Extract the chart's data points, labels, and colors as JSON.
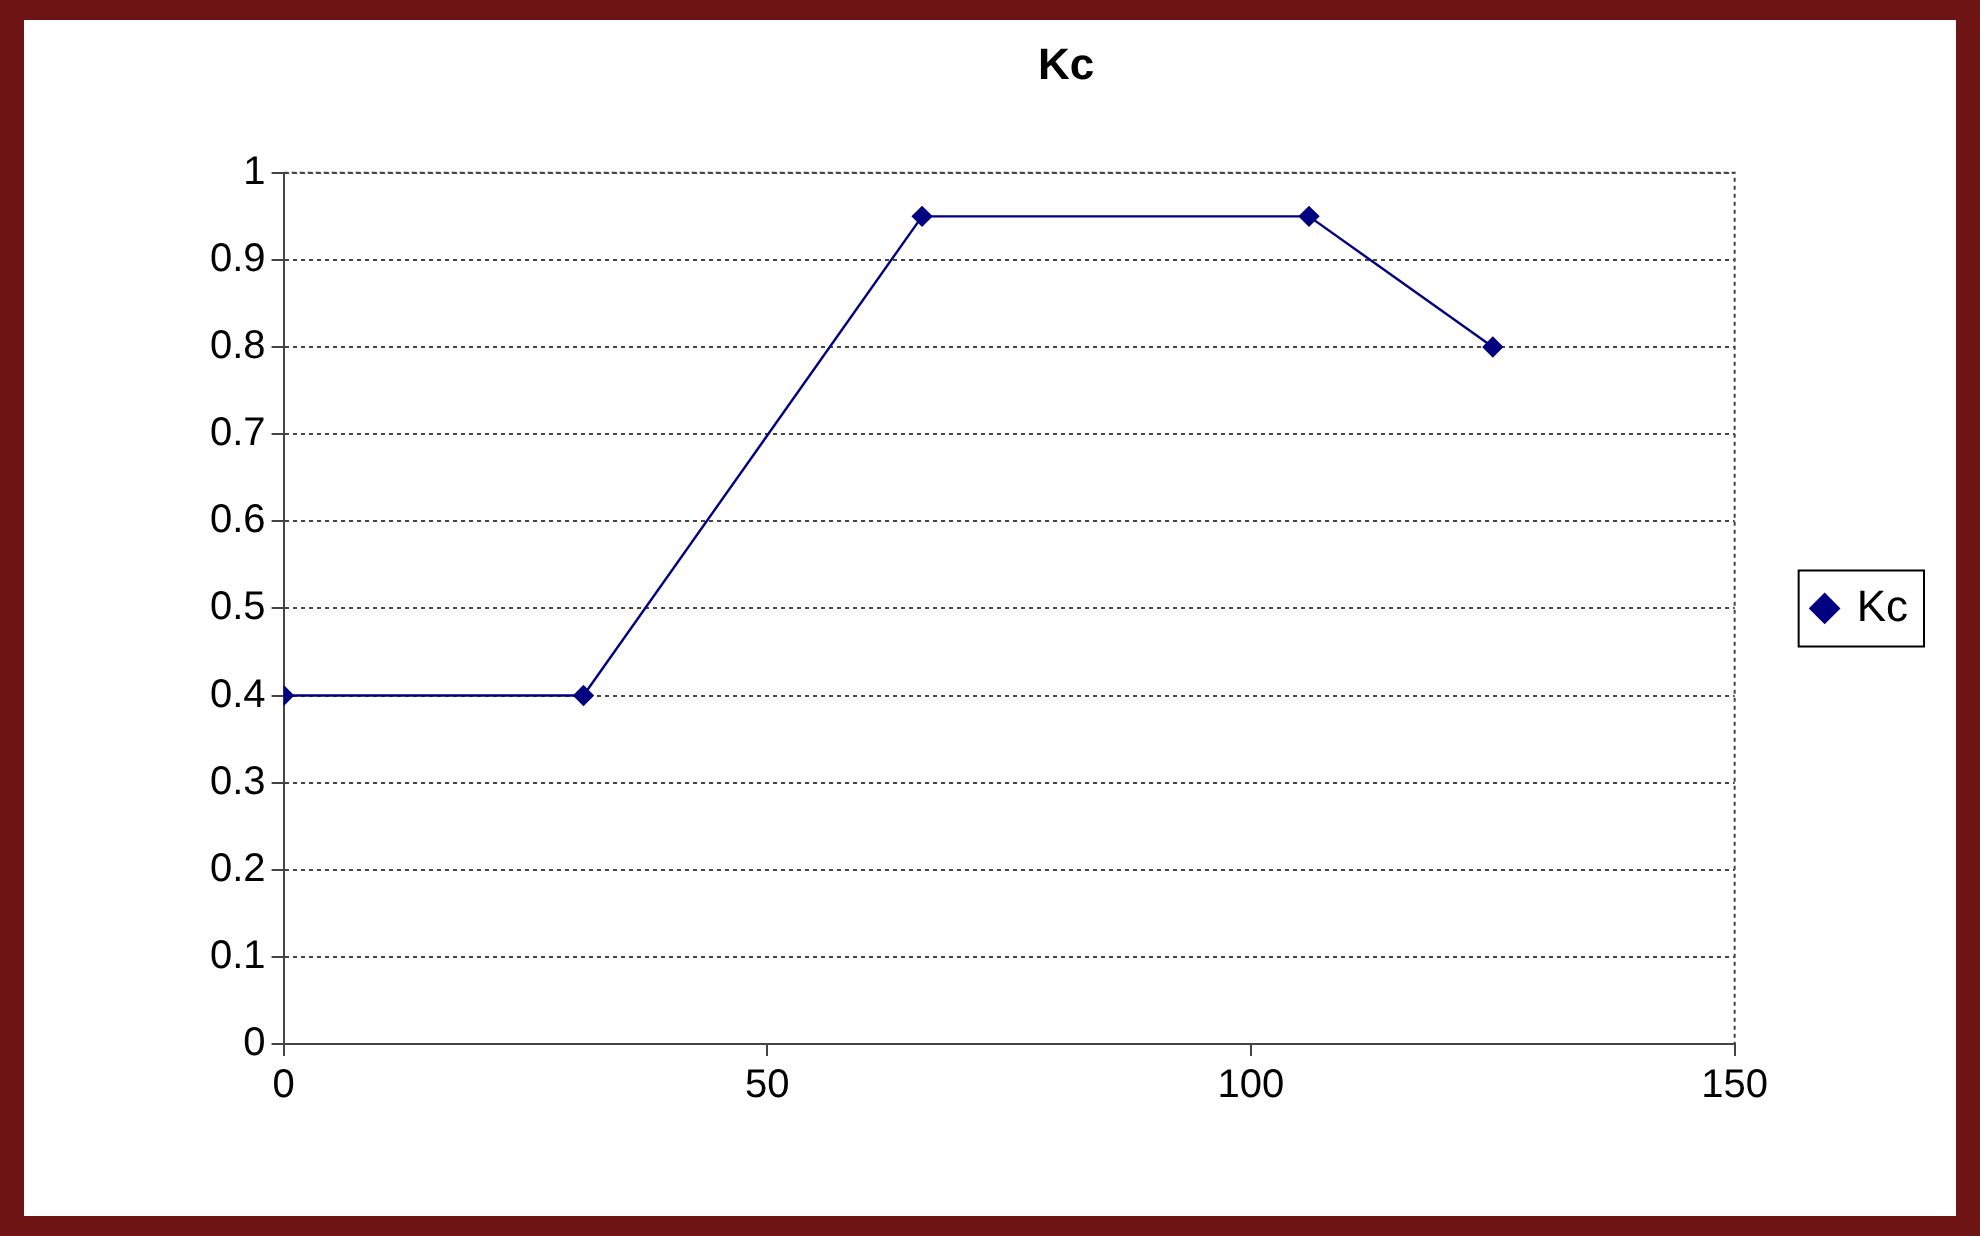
{
  "chart_data": {
    "type": "line",
    "title": "Kc",
    "x": [
      0,
      31,
      66,
      106,
      125
    ],
    "series": [
      {
        "name": "Kc",
        "color": "#000080",
        "values": [
          0.4,
          0.4,
          0.95,
          0.95,
          0.8
        ]
      }
    ],
    "xlim": [
      0,
      150
    ],
    "xticks": [
      0,
      50,
      100,
      150
    ],
    "ylim": [
      0,
      1
    ],
    "yticks": [
      0,
      0.1,
      0.2,
      0.3,
      0.4,
      0.5,
      0.6,
      0.7,
      0.8,
      0.9,
      1
    ],
    "grid": "y",
    "legend": "right",
    "marker": "diamond",
    "line_style": "solid"
  }
}
